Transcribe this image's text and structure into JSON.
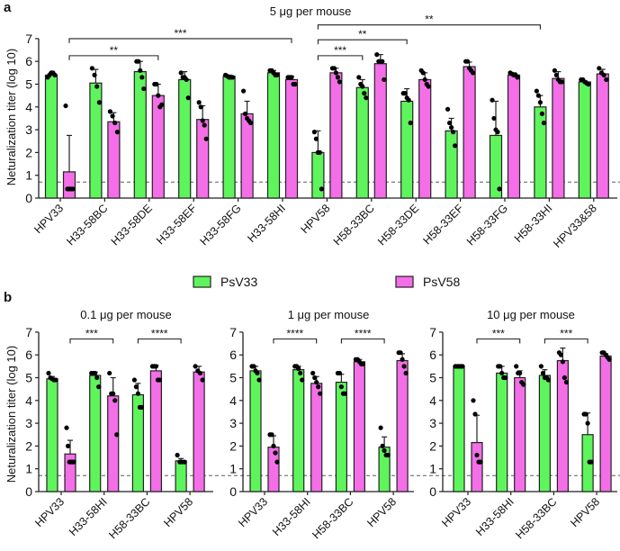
{
  "colors": {
    "PsV33": "#5ef55c",
    "PsV58": "#f46ee8",
    "cutoff_line": "#888888"
  },
  "legend": {
    "position": "center",
    "entries": [
      {
        "label": "PsV33"
      },
      {
        "label": "PsV58"
      }
    ]
  },
  "chart_data": [
    {
      "panel": "a",
      "type": "bar",
      "title": "5 μg per mouse",
      "ylabel": "Neturalization titer (log 10)",
      "ylim": [
        0,
        7
      ],
      "yticks": [
        "0",
        "1",
        "2",
        "3",
        "4",
        "5",
        "6",
        "7"
      ],
      "cutoff": 0.7,
      "categories": [
        "HPV33",
        "H33-58BC",
        "H33-58DE",
        "H33-58EF",
        "H33-58FG",
        "H33-58HI",
        "HPV58",
        "H58-33BC",
        "H58-33DE",
        "H58-33EF",
        "H58-33FG",
        "H58-33HI",
        "HPV33&58"
      ],
      "series": [
        {
          "name": "PsV33",
          "values": [
            5.4,
            5.05,
            5.55,
            5.2,
            5.35,
            5.5,
            2.0,
            4.85,
            4.25,
            2.95,
            2.75,
            4.0,
            5.1
          ],
          "error": [
            0.1,
            0.6,
            0.45,
            0.35,
            0.05,
            0.1,
            0.95,
            0.35,
            0.55,
            0.55,
            1.5,
            0.5,
            0.05
          ],
          "points": [
            [
              5.3,
              5.4,
              5.5,
              5.5,
              5.4
            ],
            [
              5.7,
              5.4,
              4.9,
              4.2
            ],
            [
              6.0,
              6.0,
              5.6,
              5.3,
              4.8
            ],
            [
              5.5,
              5.3,
              5.3,
              5.2,
              4.4
            ],
            [
              5.4,
              5.35,
              5.3,
              5.3,
              5.3
            ],
            [
              5.6,
              5.6,
              5.5,
              5.4,
              5.4
            ],
            [
              2.9,
              2.6,
              2.0,
              2.0,
              0.4
            ],
            [
              5.3,
              5.0,
              4.9,
              4.6,
              4.4
            ],
            [
              4.6,
              4.6,
              4.4,
              4.3,
              3.3
            ],
            [
              3.9,
              3.3,
              3.1,
              2.9,
              2.3
            ],
            [
              4.3,
              3.5,
              3.0,
              2.9,
              0.4
            ],
            [
              4.7,
              4.5,
              4.2,
              3.7,
              3.3
            ],
            [
              5.2,
              5.2,
              5.1,
              5.05,
              5.0
            ]
          ]
        },
        {
          "name": "PsV58",
          "values": [
            1.15,
            3.35,
            4.5,
            3.45,
            3.7,
            5.2,
            5.5,
            5.9,
            5.2,
            5.77,
            5.4,
            5.25,
            5.45
          ],
          "error": [
            1.6,
            0.4,
            0.5,
            0.6,
            0.55,
            0.15,
            0.2,
            0.4,
            0.3,
            0.2,
            0.1,
            0.3,
            0.2
          ],
          "points": [
            [
              4.05,
              0.4,
              0.4,
              0.4,
              0.4
            ],
            [
              3.8,
              3.6,
              3.3,
              2.9
            ],
            [
              5.0,
              5.0,
              4.5,
              4.0,
              4.1
            ],
            [
              4.2,
              4.0,
              3.4,
              3.2,
              2.6
            ],
            [
              4.7,
              3.7,
              3.5,
              3.4,
              3.3
            ],
            [
              5.3,
              5.3,
              5.3,
              5.0,
              5.0
            ],
            [
              5.7,
              5.7,
              5.5,
              5.3,
              5.1
            ],
            [
              6.3,
              6.0,
              6.0,
              6.0,
              5.2
            ],
            [
              5.6,
              5.5,
              5.2,
              5.0,
              4.9
            ],
            [
              6.0,
              6.0,
              5.7,
              5.6,
              5.5
            ],
            [
              5.5,
              5.45,
              5.4,
              5.4,
              5.3
            ],
            [
              5.6,
              5.4,
              5.2,
              5.1,
              5.1
            ],
            [
              5.7,
              5.5,
              5.4,
              5.2
            ]
          ]
        }
      ],
      "significance": [
        {
          "from": [
            0,
            "PsV58"
          ],
          "to": [
            2,
            "PsV58"
          ],
          "label": "**",
          "level": 6.25
        },
        {
          "from": [
            0,
            "PsV58"
          ],
          "to": [
            5,
            "PsV58"
          ],
          "label": "***",
          "level": 7.0
        },
        {
          "from": [
            6,
            "PsV33"
          ],
          "to": [
            7,
            "PsV33"
          ],
          "label": "***",
          "level": 6.25
        },
        {
          "from": [
            6,
            "PsV33"
          ],
          "to": [
            8,
            "PsV33"
          ],
          "label": "**",
          "level": 6.95
        },
        {
          "from": [
            6,
            "PsV33"
          ],
          "to": [
            11,
            "PsV33"
          ],
          "label": "**",
          "level": 7.6
        }
      ]
    },
    {
      "panel": "b",
      "type": "bar",
      "title": "0.1 μg per mouse",
      "ylabel": "Neturalization titer (log 10)",
      "ylim": [
        0,
        7
      ],
      "yticks": [
        "0",
        "1",
        "2",
        "3",
        "4",
        "5",
        "6",
        "7"
      ],
      "cutoff": 0.7,
      "categories": [
        "HPV33",
        "H33-58HI",
        "H58-33BC",
        "HPV58"
      ],
      "series": [
        {
          "name": "PsV33",
          "values": [
            4.95,
            5.1,
            4.25,
            1.35
          ],
          "error": [
            0.1,
            0.15,
            0.5,
            0.1
          ],
          "points": [
            [
              5.2,
              5.0,
              4.95,
              4.9,
              4.9
            ],
            [
              5.2,
              5.2,
              5.2,
              5.0,
              4.6
            ],
            [
              4.9,
              4.6,
              4.3,
              3.7,
              3.7
            ],
            [
              1.6,
              1.3,
              1.3,
              1.3
            ]
          ]
        },
        {
          "name": "PsV58",
          "values": [
            1.65,
            4.2,
            5.3,
            5.25
          ],
          "error": [
            0.6,
            0.8,
            0.25,
            0.25
          ],
          "points": [
            [
              2.8,
              2.0,
              1.3,
              1.3,
              1.3,
              1.3
            ],
            [
              5.2,
              4.3,
              4.3,
              4.0,
              2.5
            ],
            [
              5.5,
              5.5,
              5.5,
              4.9,
              4.9
            ],
            [
              5.5,
              5.3,
              5.2,
              4.9
            ]
          ]
        }
      ],
      "significance": [
        {
          "from": [
            0,
            "PsV58"
          ],
          "to": [
            1,
            "PsV58"
          ],
          "label": "***",
          "level": 6.7
        },
        {
          "from": [
            2,
            "PsV33"
          ],
          "to": [
            3,
            "PsV33"
          ],
          "label": "****",
          "level": 6.7
        }
      ]
    },
    {
      "panel": "",
      "type": "bar",
      "title": "1 μg per mouse",
      "ylim": [
        0,
        7
      ],
      "yticks": [
        "0",
        "1",
        "2",
        "3",
        "4",
        "5",
        "6",
        "7"
      ],
      "cutoff": 0.7,
      "categories": [
        "HPV33",
        "H33-58HI",
        "H58-33BC",
        "HPV58"
      ],
      "series": [
        {
          "name": "PsV33",
          "values": [
            5.3,
            5.35,
            4.8,
            1.95
          ],
          "error": [
            0.2,
            0.15,
            0.35,
            0.45
          ],
          "points": [
            [
              5.5,
              5.5,
              5.3,
              5.2,
              4.9
            ],
            [
              5.5,
              5.5,
              5.4,
              5.2,
              4.9
            ],
            [
              5.2,
              5.2,
              4.6,
              4.3,
              4.3
            ],
            [
              2.8,
              2.0,
              1.8,
              1.6,
              1.6
            ]
          ]
        },
        {
          "name": "PsV58",
          "values": [
            1.95,
            4.75,
            5.7,
            5.75
          ],
          "error": [
            0.5,
            0.3,
            0.1,
            0.3
          ],
          "points": [
            [
              2.5,
              2.5,
              2.0,
              1.7,
              1.3
            ],
            [
              5.2,
              5.0,
              4.8,
              4.6,
              4.3
            ],
            [
              5.8,
              5.8,
              5.7,
              5.6,
              5.6
            ],
            [
              6.1,
              6.1,
              5.8,
              5.5,
              5.2
            ]
          ]
        }
      ],
      "significance": [
        {
          "from": [
            0,
            "PsV58"
          ],
          "to": [
            1,
            "PsV58"
          ],
          "label": "****",
          "level": 6.7
        },
        {
          "from": [
            2,
            "PsV33"
          ],
          "to": [
            3,
            "PsV33"
          ],
          "label": "****",
          "level": 6.7
        }
      ]
    },
    {
      "panel": "",
      "type": "bar",
      "title": "10 μg per mouse",
      "ylim": [
        0,
        7
      ],
      "yticks": [
        "0",
        "1",
        "2",
        "3",
        "4",
        "5",
        "6",
        "7"
      ],
      "cutoff": 0.7,
      "categories": [
        "HPV33",
        "H33-58HI",
        "H58-33BC",
        "HPV58"
      ],
      "series": [
        {
          "name": "PsV33",
          "values": [
            5.5,
            5.2,
            5.1,
            2.5
          ],
          "error": [
            0.03,
            0.3,
            0.25,
            0.95
          ],
          "points": [
            [
              5.5,
              5.5,
              5.5,
              5.5,
              5.5
            ],
            [
              5.5,
              5.5,
              5.2,
              5.0,
              5.0
            ],
            [
              5.5,
              5.2,
              5.0,
              5.0,
              4.9
            ],
            [
              3.4,
              3.4,
              3.0,
              1.3,
              1.3
            ]
          ]
        },
        {
          "name": "PsV58",
          "values": [
            2.15,
            5.0,
            5.75,
            5.95
          ],
          "error": [
            1.2,
            0.3,
            0.55,
            0.1
          ],
          "points": [
            [
              4.0,
              3.4,
              1.6,
              1.3,
              1.3
            ],
            [
              5.5,
              5.2,
              5.2,
              4.8,
              4.7
            ],
            [
              6.1,
              6.0,
              5.7,
              5.0,
              4.8
            ],
            [
              6.1,
              6.1,
              6.0,
              5.9,
              5.8
            ]
          ]
        }
      ],
      "significance": [
        {
          "from": [
            0,
            "PsV58"
          ],
          "to": [
            1,
            "PsV58"
          ],
          "label": "***",
          "level": 6.7
        },
        {
          "from": [
            2,
            "PsV33"
          ],
          "to": [
            3,
            "PsV33"
          ],
          "label": "***",
          "level": 6.7
        }
      ]
    }
  ]
}
